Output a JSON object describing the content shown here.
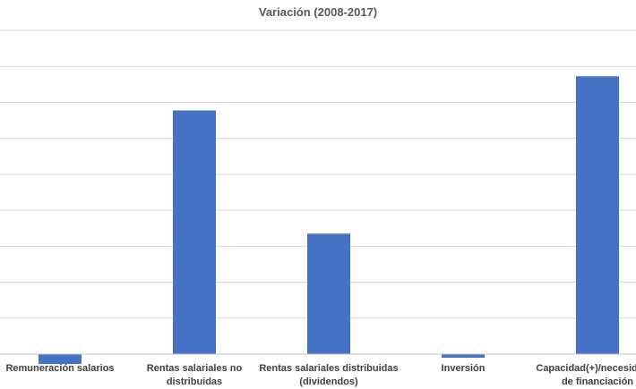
{
  "chart_data": {
    "type": "bar",
    "title": "Variación (2008-2017)",
    "categories": [
      "Remuneración salarios",
      "Rentas salariales no\ndistribuidas",
      "Rentas salariales distribuidas\n(dividendos)",
      "Inversión",
      "Capacidad(+)/necesidad(-)\nde financiación"
    ],
    "values": [
      -11,
      271,
      134,
      -4,
      309
    ],
    "ylim": [
      -20,
      360
    ],
    "grid": true,
    "legend": "none",
    "bar_color": "#4472C4",
    "grid_color": "#d9d9d9",
    "axis_color": "#bfbfbf"
  }
}
